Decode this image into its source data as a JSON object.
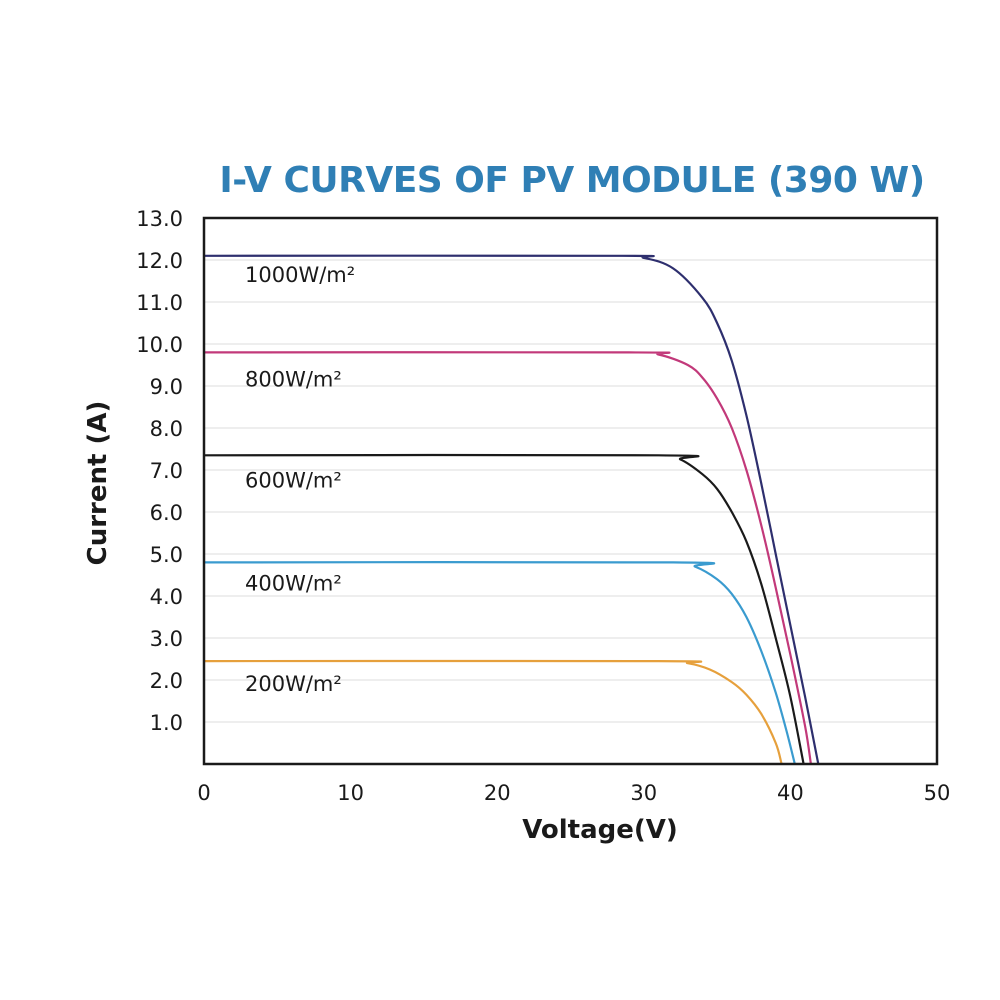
{
  "chart_data": {
    "type": "line",
    "title": "I-V CURVES OF PV MODULE (390 W)",
    "xlabel": "Voltage(V)",
    "ylabel": "Current (A)",
    "xlim": [
      0,
      50
    ],
    "ylim": [
      0,
      13
    ],
    "xticks": [
      "0",
      "10",
      "20",
      "30",
      "40",
      "50"
    ],
    "yticks": [
      "1.0",
      "2.0",
      "3.0",
      "4.0",
      "5.0",
      "6.0",
      "7.0",
      "8.0",
      "9.0",
      "10.0",
      "11.0",
      "12.0",
      "13.0"
    ],
    "grid": "horizontal",
    "series": [
      {
        "name": "1000W/m²",
        "color": "#2e2f6e",
        "isc": 12.1,
        "voc": 41.9,
        "points": [
          [
            0,
            12.1
          ],
          [
            28,
            12.1
          ],
          [
            30,
            12.05
          ],
          [
            32,
            11.8
          ],
          [
            34,
            11.1
          ],
          [
            35,
            10.5
          ],
          [
            36,
            9.6
          ],
          [
            37,
            8.3
          ],
          [
            38,
            6.7
          ],
          [
            39,
            5.0
          ],
          [
            40,
            3.3
          ],
          [
            41,
            1.6
          ],
          [
            41.9,
            0
          ]
        ]
      },
      {
        "name": "800W/m²",
        "color": "#c2397a",
        "isc": 9.8,
        "voc": 41.4,
        "points": [
          [
            0,
            9.8
          ],
          [
            29,
            9.8
          ],
          [
            31,
            9.75
          ],
          [
            33,
            9.5
          ],
          [
            34,
            9.2
          ],
          [
            35,
            8.7
          ],
          [
            36,
            8.0
          ],
          [
            37,
            7.0
          ],
          [
            38,
            5.7
          ],
          [
            39,
            4.2
          ],
          [
            40,
            2.6
          ],
          [
            41,
            0.9
          ],
          [
            41.4,
            0
          ]
        ]
      },
      {
        "name": "600W/m²",
        "color": "#1a1a1a",
        "isc": 7.35,
        "voc": 40.9,
        "points": [
          [
            0,
            7.35
          ],
          [
            31,
            7.35
          ],
          [
            32.5,
            7.25
          ],
          [
            34,
            6.9
          ],
          [
            35,
            6.55
          ],
          [
            36,
            6.0
          ],
          [
            37,
            5.3
          ],
          [
            38,
            4.3
          ],
          [
            39,
            3.0
          ],
          [
            40,
            1.6
          ],
          [
            40.9,
            0
          ]
        ]
      },
      {
        "name": "400W/m²",
        "color": "#3a9bcf",
        "isc": 4.8,
        "voc": 40.3,
        "points": [
          [
            0,
            4.8
          ],
          [
            32,
            4.8
          ],
          [
            33.5,
            4.7
          ],
          [
            35,
            4.4
          ],
          [
            36,
            4.05
          ],
          [
            37,
            3.5
          ],
          [
            38,
            2.7
          ],
          [
            39,
            1.7
          ],
          [
            39.8,
            0.7
          ],
          [
            40.3,
            0
          ]
        ]
      },
      {
        "name": "200W/m²",
        "color": "#e6a03c",
        "isc": 2.45,
        "voc": 39.4,
        "points": [
          [
            0,
            2.45
          ],
          [
            31,
            2.45
          ],
          [
            33,
            2.4
          ],
          [
            34.5,
            2.25
          ],
          [
            36,
            1.95
          ],
          [
            37,
            1.65
          ],
          [
            38,
            1.2
          ],
          [
            39,
            0.5
          ],
          [
            39.4,
            0
          ]
        ]
      }
    ]
  }
}
